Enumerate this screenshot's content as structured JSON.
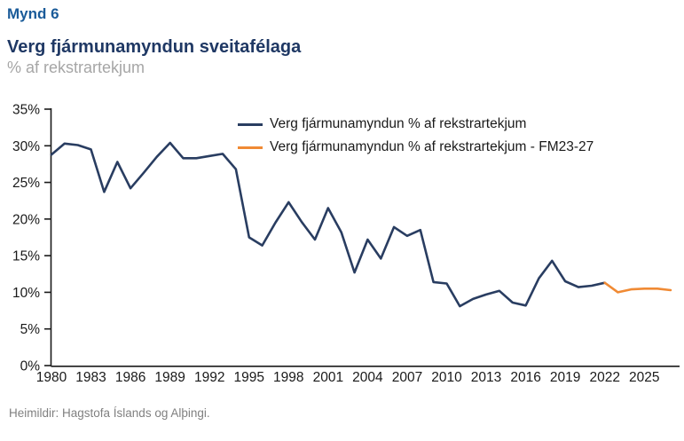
{
  "page": {
    "kicker": "Mynd 6",
    "title": "Verg fjármunamyndun sveitafélaga",
    "subtitle": "% af rekstrartekjum",
    "source": "Heimildir: Hagstofa Íslands og Alþingi."
  },
  "colors": {
    "kicker_blue": "#1A5B99",
    "title_navy": "#1F3864",
    "subtitle_gray": "#A6A6A6",
    "source_gray": "#808080",
    "axis": "#1a1a1a",
    "actual_line": "#293D61",
    "forecast_line": "#F08A34"
  },
  "chart_data": {
    "type": "line",
    "title": "Verg fjármunamyndun sveitafélaga",
    "ylabel": "% af rekstrartekjum",
    "ylim": [
      0,
      35
    ],
    "y_tick_step": 5,
    "y_tick_labels": [
      "0%",
      "5%",
      "10%",
      "15%",
      "20%",
      "25%",
      "30%",
      "35%"
    ],
    "x_min": 1980,
    "x_max": 2027,
    "x_tick_labels": [
      "1980",
      "1983",
      "1986",
      "1989",
      "1992",
      "1995",
      "1998",
      "2001",
      "2004",
      "2007",
      "2010",
      "2013",
      "2016",
      "2019",
      "2022",
      "2025"
    ],
    "grid": false,
    "legend_position": "top-center",
    "series": [
      {
        "name": "Verg fjármunamyndun % af rekstrartekjum",
        "color": "#293D61",
        "x": [
          1980,
          1981,
          1982,
          1983,
          1984,
          1985,
          1986,
          1987,
          1988,
          1989,
          1990,
          1991,
          1992,
          1993,
          1994,
          1995,
          1996,
          1997,
          1998,
          1999,
          2000,
          2001,
          2002,
          2003,
          2004,
          2005,
          2006,
          2007,
          2008,
          2009,
          2010,
          2011,
          2012,
          2013,
          2014,
          2015,
          2016,
          2017,
          2018,
          2019,
          2020,
          2021,
          2022
        ],
        "values": [
          28.8,
          30.3,
          30.1,
          29.5,
          23.7,
          27.8,
          24.2,
          26.3,
          28.5,
          30.4,
          28.3,
          28.3,
          28.6,
          28.9,
          26.8,
          17.5,
          16.4,
          19.5,
          22.3,
          19.6,
          17.2,
          21.5,
          18.2,
          12.7,
          17.2,
          14.6,
          18.9,
          17.7,
          18.5,
          11.4,
          11.2,
          8.1,
          9.1,
          9.7,
          10.2,
          8.6,
          8.2,
          11.9,
          14.3,
          11.5,
          10.7,
          10.9,
          11.3
        ]
      },
      {
        "name": "Verg fjármunamyndun % af rekstrartekjum - FM23-27",
        "color": "#F08A34",
        "x": [
          2022,
          2023,
          2024,
          2025,
          2026,
          2027
        ],
        "values": [
          11.3,
          10.0,
          10.4,
          10.5,
          10.5,
          10.3
        ]
      }
    ]
  }
}
